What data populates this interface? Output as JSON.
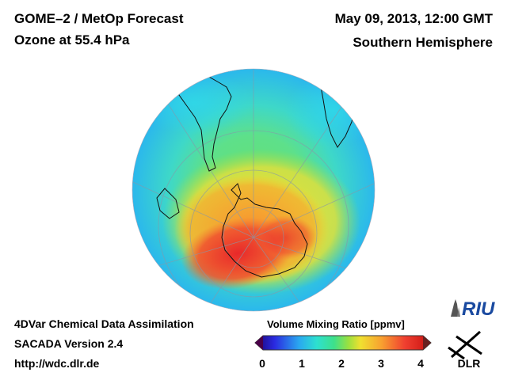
{
  "header": {
    "title": "GOME–2 / MetOp Forecast",
    "subtitle": "Ozone at 55.4 hPa",
    "datetime": "May 09, 2013, 12:00 GMT",
    "hemisphere": "Southern Hemisphere"
  },
  "footer": {
    "line1": "4DVar Chemical Data Assimilation",
    "line2": "SACADA Version 2.4",
    "line3": "http://wdc.dlr.de"
  },
  "colorbar": {
    "title": "Volume Mixing Ratio [ppmv]",
    "ticks": [
      "0",
      "1",
      "2",
      "3",
      "4"
    ],
    "range": [
      0,
      4
    ],
    "colors": [
      "#1a0070",
      "#2a2ae0",
      "#2aa8f0",
      "#2de0d0",
      "#3ee08a",
      "#9ae040",
      "#f0e030",
      "#f8a030",
      "#f04030",
      "#c81010"
    ]
  },
  "logos": {
    "riu": "RIU",
    "dlr": "DLR"
  },
  "map": {
    "projection": "orthographic",
    "center": "South Pole",
    "field": "ozone volume mixing ratio"
  }
}
